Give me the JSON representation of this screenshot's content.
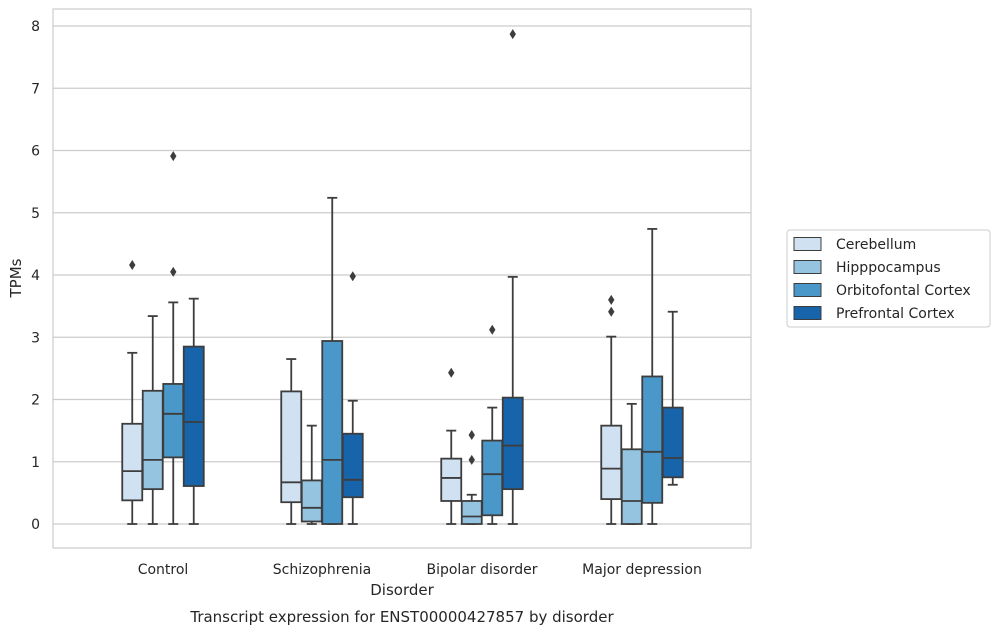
{
  "chart_data": {
    "type": "box",
    "caption": "Transcript expression for ENST00000427857 by disorder",
    "xlabel": "Disorder",
    "ylabel": "TPMs",
    "ylim": [
      -0.38,
      8.3
    ],
    "yticks": [
      0,
      1,
      2,
      3,
      4,
      5,
      6,
      7,
      8
    ],
    "grid": true,
    "legend_position": "right",
    "categories": [
      "Control",
      "Schizophrenia",
      "Bipolar disorder",
      "Major depression"
    ],
    "series": [
      {
        "name": "Cerebellum",
        "color": "#d0e1f2",
        "boxes": [
          {
            "whisker_low": 0,
            "q1": 0.38,
            "median": 0.85,
            "q3": 1.61,
            "whisker_high": 2.75,
            "outliers": [
              4.16
            ]
          },
          {
            "whisker_low": 0,
            "q1": 0.35,
            "median": 0.67,
            "q3": 2.13,
            "whisker_high": 2.65,
            "outliers": []
          },
          {
            "whisker_low": 0,
            "q1": 0.37,
            "median": 0.74,
            "q3": 1.05,
            "whisker_high": 1.5,
            "outliers": [
              2.43
            ]
          },
          {
            "whisker_low": 0,
            "q1": 0.4,
            "median": 0.89,
            "q3": 1.58,
            "whisker_high": 3.01,
            "outliers": [
              3.41,
              3.6
            ]
          }
        ]
      },
      {
        "name": "Hipppocampus",
        "color": "#94c4df",
        "boxes": [
          {
            "whisker_low": 0,
            "q1": 0.56,
            "median": 1.03,
            "q3": 2.14,
            "whisker_high": 3.34,
            "outliers": []
          },
          {
            "whisker_low": 0,
            "q1": 0.04,
            "median": 0.26,
            "q3": 0.7,
            "whisker_high": 1.58,
            "outliers": []
          },
          {
            "whisker_low": 0,
            "q1": 0.0,
            "median": 0.12,
            "q3": 0.37,
            "whisker_high": 0.47,
            "outliers": [
              1.03,
              1.43
            ]
          },
          {
            "whisker_low": 0,
            "q1": 0.0,
            "median": 0.37,
            "q3": 1.2,
            "whisker_high": 1.93,
            "outliers": []
          }
        ]
      },
      {
        "name": "Orbitofontal Cortex",
        "color": "#4a98c9",
        "boxes": [
          {
            "whisker_low": 0,
            "q1": 1.07,
            "median": 1.77,
            "q3": 2.25,
            "whisker_high": 3.56,
            "outliers": [
              4.05,
              5.91
            ]
          },
          {
            "whisker_low": 0,
            "q1": 0.0,
            "median": 1.03,
            "q3": 2.94,
            "whisker_high": 5.24,
            "outliers": []
          },
          {
            "whisker_low": 0,
            "q1": 0.14,
            "median": 0.8,
            "q3": 1.34,
            "whisker_high": 1.87,
            "outliers": [
              3.12
            ]
          },
          {
            "whisker_low": 0,
            "q1": 0.34,
            "median": 1.16,
            "q3": 2.37,
            "whisker_high": 4.74,
            "outliers": []
          }
        ]
      },
      {
        "name": "Prefrontal Cortex",
        "color": "#1764ab",
        "boxes": [
          {
            "whisker_low": 0,
            "q1": 0.61,
            "median": 1.64,
            "q3": 2.85,
            "whisker_high": 3.62,
            "outliers": []
          },
          {
            "whisker_low": 0,
            "q1": 0.43,
            "median": 0.71,
            "q3": 1.45,
            "whisker_high": 1.98,
            "outliers": [
              3.98
            ]
          },
          {
            "whisker_low": 0,
            "q1": 0.56,
            "median": 1.26,
            "q3": 2.03,
            "whisker_high": 3.97,
            "outliers": [
              7.87
            ]
          },
          {
            "whisker_low": 0.63,
            "q1": 0.75,
            "median": 1.06,
            "q3": 1.87,
            "whisker_high": 3.41,
            "outliers": []
          }
        ]
      }
    ]
  }
}
